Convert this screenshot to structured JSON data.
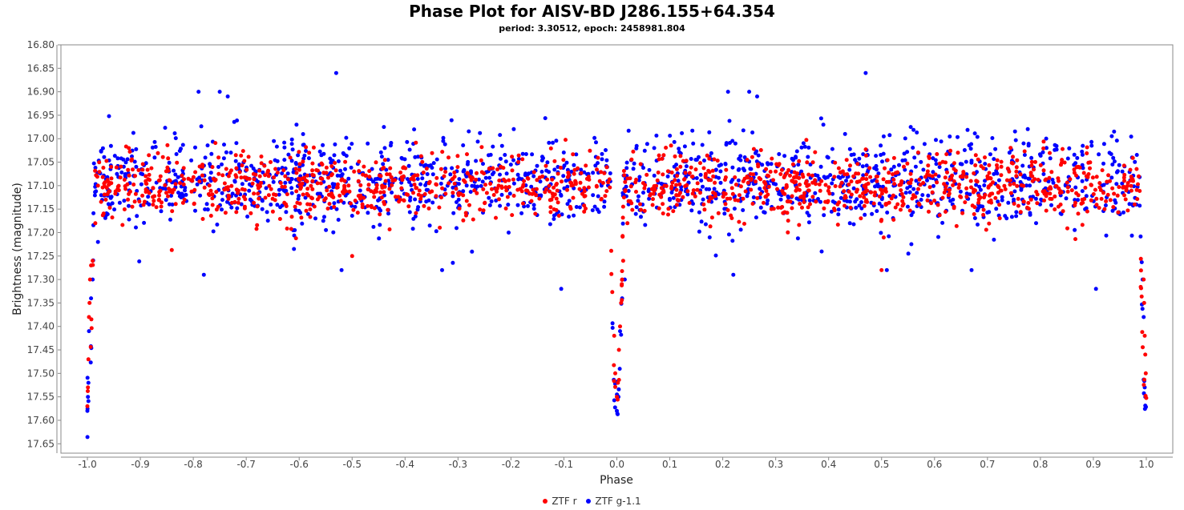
{
  "chart_data": {
    "type": "scatter",
    "title": "Phase Plot for AISV-BD J286.155+64.354",
    "subtitle": "period: 3.30512, epoch: 2458981.804",
    "xlabel": "Phase",
    "ylabel": "Brightness (magnitude)",
    "xlim": [
      -1.05,
      1.05
    ],
    "ylim": [
      17.67,
      16.8
    ],
    "y_inverted": true,
    "xticks": [
      "-1.0",
      "-0.9",
      "-0.8",
      "-0.7",
      "-0.6",
      "-0.5",
      "-0.4",
      "-0.3",
      "-0.2",
      "-0.1",
      "0.0",
      "0.1",
      "0.2",
      "0.3",
      "0.4",
      "0.5",
      "0.6",
      "0.7",
      "0.8",
      "0.9",
      "1.0"
    ],
    "yticks": [
      "16.80",
      "16.85",
      "16.90",
      "16.95",
      "17.00",
      "17.05",
      "17.10",
      "17.15",
      "17.20",
      "17.25",
      "17.30",
      "17.35",
      "17.40",
      "17.45",
      "17.50",
      "17.55",
      "17.60",
      "17.65"
    ],
    "grid": false,
    "legend_position": "bottom",
    "period_fold": true,
    "series": [
      {
        "name": "ZTF r",
        "color": "#ff0000",
        "baseline": 17.1,
        "scatter": 0.035,
        "eclipse_depth": 17.57,
        "eclipse_phase": [
          -1.0,
          0.0,
          1.0
        ],
        "secondary_dip_phase": [
          -0.5,
          0.5
        ],
        "secondary_dip_depth": 17.25,
        "points": [
          [
            -1.0,
            17.57
          ],
          [
            -0.999,
            17.53
          ],
          [
            -0.998,
            17.47
          ],
          [
            -0.997,
            17.38
          ],
          [
            -0.996,
            17.35
          ],
          [
            -0.995,
            17.3
          ],
          [
            -0.993,
            17.27
          ],
          [
            -0.99,
            17.26
          ],
          [
            -0.985,
            17.18
          ],
          [
            -0.98,
            17.1
          ],
          [
            -0.005,
            17.42
          ],
          [
            -0.003,
            17.5
          ],
          [
            0.0,
            17.55
          ],
          [
            0.002,
            17.52
          ],
          [
            0.004,
            17.45
          ],
          [
            0.006,
            17.4
          ],
          [
            0.008,
            17.35
          ],
          [
            0.01,
            17.3
          ],
          [
            0.012,
            17.26
          ],
          [
            0.02,
            17.18
          ],
          [
            0.995,
            17.3
          ],
          [
            0.996,
            17.35
          ],
          [
            0.997,
            17.42
          ],
          [
            0.998,
            17.46
          ],
          [
            0.999,
            17.5
          ],
          [
            -0.5,
            17.25
          ],
          [
            0.5,
            17.28
          ]
        ]
      },
      {
        "name": "ZTF g-1.1",
        "color": "#0000ff",
        "baseline": 17.09,
        "scatter": 0.05,
        "eclipse_depth": 17.58,
        "eclipse_phase": [
          -1.0,
          0.0,
          1.0
        ],
        "outliers": [
          [
            -0.79,
            16.9
          ],
          [
            -0.75,
            16.9
          ],
          [
            -0.735,
            16.91
          ],
          [
            -0.53,
            16.86
          ],
          [
            0.21,
            16.9
          ],
          [
            0.25,
            16.9
          ],
          [
            0.265,
            16.91
          ],
          [
            0.47,
            16.86
          ],
          [
            -0.605,
            16.97
          ],
          [
            -0.44,
            16.975
          ],
          [
            0.39,
            16.97
          ],
          [
            0.555,
            16.975
          ],
          [
            -0.78,
            17.29
          ],
          [
            0.22,
            17.29
          ],
          [
            -0.105,
            17.32
          ],
          [
            0.905,
            17.32
          ],
          [
            -0.33,
            17.28
          ],
          [
            0.67,
            17.28
          ],
          [
            -0.52,
            17.28
          ],
          [
            0.51,
            17.28
          ]
        ],
        "points": [
          [
            -1.0,
            17.58
          ],
          [
            -0.999,
            17.55
          ],
          [
            -0.998,
            17.52
          ],
          [
            -0.997,
            17.41
          ],
          [
            -0.993,
            17.34
          ],
          [
            -0.99,
            17.3
          ],
          [
            -0.98,
            17.22
          ],
          [
            0.0,
            17.58
          ],
          [
            0.003,
            17.55
          ],
          [
            0.006,
            17.41
          ],
          [
            0.01,
            17.34
          ],
          [
            0.015,
            17.3
          ],
          [
            0.998,
            17.55
          ],
          [
            0.997,
            17.53
          ],
          [
            0.995,
            17.38
          ],
          [
            0.993,
            17.3
          ]
        ]
      }
    ]
  }
}
